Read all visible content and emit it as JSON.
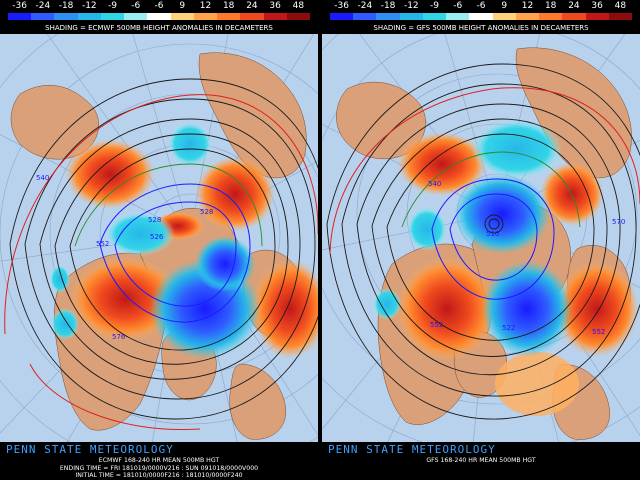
{
  "colorbar": {
    "ticks": [
      "-36",
      "-24",
      "-18",
      "-12",
      "-9",
      "-6",
      "-6",
      "9",
      "12",
      "18",
      "24",
      "36",
      "48"
    ],
    "colors": [
      "#1a1aff",
      "#2e5cff",
      "#2d8ff0",
      "#27b6e8",
      "#32d4e8",
      "#9aeef0",
      "#fff",
      "#ffd27a",
      "#ffa34a",
      "#ff7a2a",
      "#ef4a1e",
      "#c01818",
      "#8a0c0c"
    ]
  },
  "panels": [
    {
      "id": "left",
      "shading_label": "SHADING = ECMWF 500MB HEIGHT ANOMALIES IN DECAMETERS",
      "brand": "PENN STATE METEOROLOGY",
      "info_lines": [
        "ECMWF 168-240 HR MEAN 500MB HGT",
        "ENDING TIME = FRI 181019/0000V216 : SUN 091018/0000V000",
        "INITIAL TIME = 181010/0000F216 : 181010/0000F240"
      ],
      "contour_labels": [
        "540",
        "528",
        "526",
        "528",
        "552",
        "576"
      ]
    },
    {
      "id": "right",
      "shading_label": "SHADING = GFS 500MB HEIGHT ANOMALIES IN DECAMETERS",
      "brand": "PENN STATE METEOROLOGY",
      "info_lines": [
        "GFS 168-240 HR MEAN 500MB HGT"
      ],
      "contour_labels": [
        "540",
        "510",
        "522",
        "552",
        "570",
        "552"
      ]
    }
  ]
}
